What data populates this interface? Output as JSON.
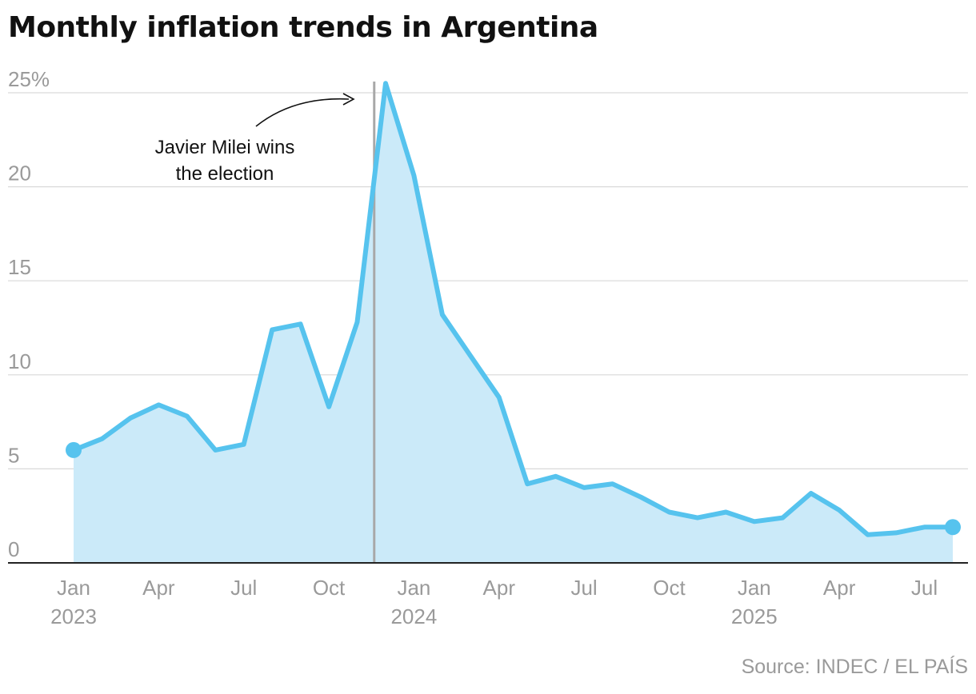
{
  "title": "Monthly inflation trends in Argentina",
  "source": "Source: INDEC / EL PAÍS",
  "colors": {
    "line": "#56c3ee",
    "fill": "#cbeaf9",
    "marker_line": "#a8a8a8",
    "grid": "#d9d9d9",
    "axis": "#222222",
    "text": "#111111",
    "muted": "#9a9a9a"
  },
  "chart_data": {
    "type": "area",
    "x": [
      "2023-01",
      "2023-02",
      "2023-03",
      "2023-04",
      "2023-05",
      "2023-06",
      "2023-07",
      "2023-08",
      "2023-09",
      "2023-10",
      "2023-11",
      "2023-12",
      "2024-01",
      "2024-02",
      "2024-03",
      "2024-04",
      "2024-05",
      "2024-06",
      "2024-07",
      "2024-08",
      "2024-09",
      "2024-10",
      "2024-11",
      "2024-12",
      "2025-01",
      "2025-02",
      "2025-03",
      "2025-04",
      "2025-05",
      "2025-06",
      "2025-07",
      "2025-08"
    ],
    "values": [
      6.0,
      6.6,
      7.7,
      8.4,
      7.8,
      6.0,
      6.3,
      12.4,
      12.7,
      8.3,
      12.8,
      25.5,
      20.6,
      13.2,
      11.0,
      8.8,
      4.2,
      4.6,
      4.0,
      4.2,
      3.5,
      2.7,
      2.4,
      2.7,
      2.2,
      2.4,
      3.7,
      2.8,
      1.5,
      1.6,
      1.9,
      1.9
    ],
    "ylim": [
      0,
      25
    ],
    "yticks": [
      {
        "value": 0,
        "label": "0"
      },
      {
        "value": 5,
        "label": "5"
      },
      {
        "value": 10,
        "label": "10"
      },
      {
        "value": 15,
        "label": "15"
      },
      {
        "value": 20,
        "label": "20"
      },
      {
        "value": 25,
        "label": "25%"
      }
    ],
    "xticks": [
      {
        "x": "2023-01",
        "label": "Jan",
        "year": "2023"
      },
      {
        "x": "2023-04",
        "label": "Apr"
      },
      {
        "x": "2023-07",
        "label": "Jul"
      },
      {
        "x": "2023-10",
        "label": "Oct"
      },
      {
        "x": "2024-01",
        "label": "Jan",
        "year": "2024"
      },
      {
        "x": "2024-04",
        "label": "Apr"
      },
      {
        "x": "2024-07",
        "label": "Jul"
      },
      {
        "x": "2024-10",
        "label": "Oct"
      },
      {
        "x": "2025-01",
        "label": "Jan",
        "year": "2025"
      },
      {
        "x": "2025-04",
        "label": "Apr"
      },
      {
        "x": "2025-07",
        "label": "Jul"
      }
    ],
    "grid": true,
    "annotation": {
      "x": "2023-11-19",
      "lines": [
        "Javier Milei wins",
        "the election"
      ]
    }
  }
}
